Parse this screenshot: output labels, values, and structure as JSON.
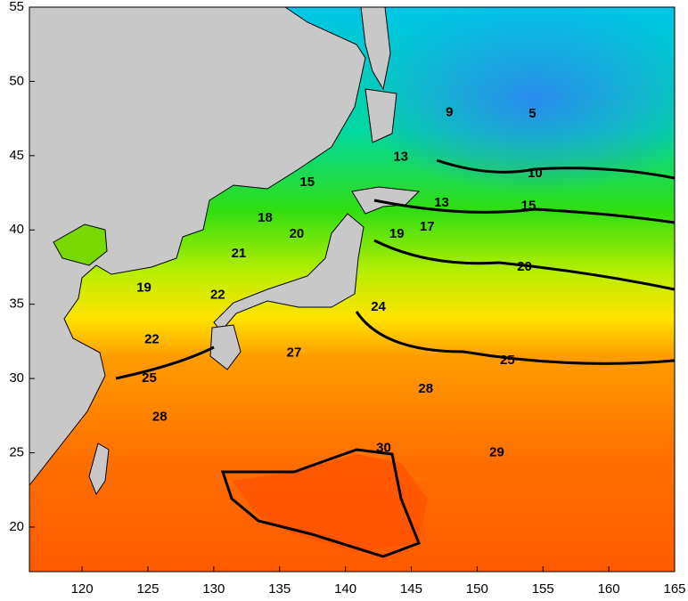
{
  "chart_data": {
    "type": "contour",
    "xlim": [
      116,
      165
    ],
    "ylim": [
      17,
      55
    ],
    "xticks": [
      120,
      125,
      130,
      135,
      140,
      145,
      150,
      155,
      160,
      165
    ],
    "yticks": [
      20,
      25,
      30,
      35,
      40,
      45,
      50,
      55
    ],
    "contour_labels": [
      {
        "value": 9,
        "lon": 147.9,
        "lat": 47.9
      },
      {
        "value": 5,
        "lon": 154.2,
        "lat": 47.8
      },
      {
        "value": 13,
        "lon": 144.2,
        "lat": 44.9
      },
      {
        "value": 10,
        "lon": 154.4,
        "lat": 43.8
      },
      {
        "value": 15,
        "lon": 137.1,
        "lat": 43.2
      },
      {
        "value": 13,
        "lon": 147.3,
        "lat": 41.8
      },
      {
        "value": 15,
        "lon": 153.9,
        "lat": 41.6
      },
      {
        "value": 18,
        "lon": 133.9,
        "lat": 40.8
      },
      {
        "value": 20,
        "lon": 136.3,
        "lat": 39.7
      },
      {
        "value": 19,
        "lon": 143.9,
        "lat": 39.7
      },
      {
        "value": 17,
        "lon": 146.2,
        "lat": 40.2
      },
      {
        "value": 21,
        "lon": 131.9,
        "lat": 38.4
      },
      {
        "value": 20,
        "lon": 153.6,
        "lat": 37.5
      },
      {
        "value": 19,
        "lon": 124.7,
        "lat": 36.1
      },
      {
        "value": 22,
        "lon": 130.3,
        "lat": 35.6
      },
      {
        "value": 24,
        "lon": 142.5,
        "lat": 34.8
      },
      {
        "value": 22,
        "lon": 125.3,
        "lat": 32.6
      },
      {
        "value": 27,
        "lon": 136.1,
        "lat": 31.7
      },
      {
        "value": 25,
        "lon": 152.3,
        "lat": 31.2
      },
      {
        "value": 25,
        "lon": 125.1,
        "lat": 30.0
      },
      {
        "value": 28,
        "lon": 146.1,
        "lat": 29.3
      },
      {
        "value": 28,
        "lon": 125.9,
        "lat": 27.4
      },
      {
        "value": 30,
        "lon": 142.9,
        "lat": 25.3
      },
      {
        "value": 29,
        "lon": 151.5,
        "lat": 25.0
      }
    ]
  }
}
